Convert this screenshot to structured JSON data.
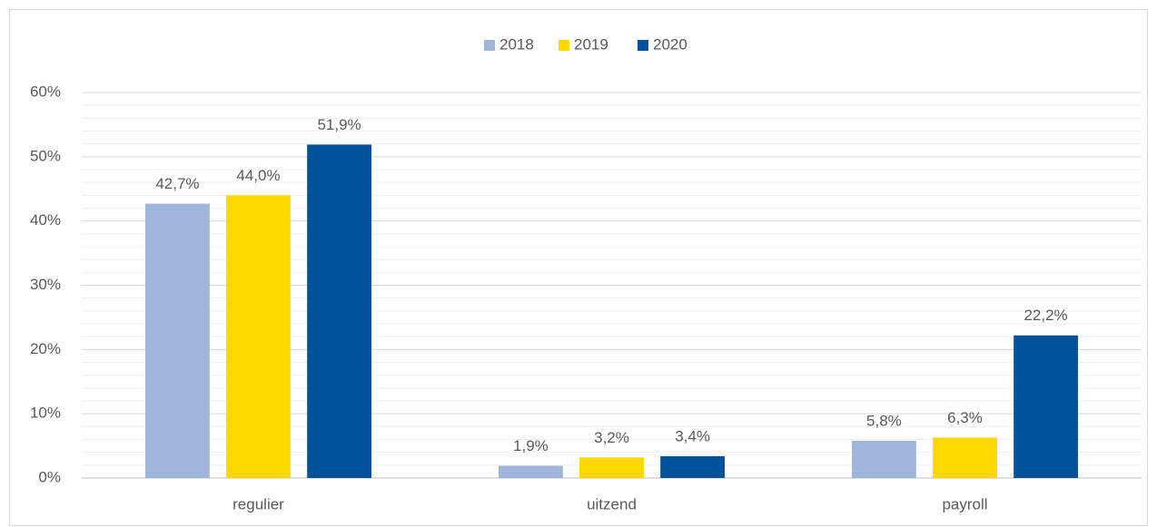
{
  "chart_data": {
    "type": "bar",
    "categories": [
      "regulier",
      "uitzend",
      "payroll"
    ],
    "series": [
      {
        "name": "2018",
        "color": "#a1b4d9",
        "values": [
          42.7,
          1.9,
          5.8
        ],
        "value_labels": [
          "42,7%",
          "1,9%",
          "5,8%"
        ]
      },
      {
        "name": "2019",
        "color": "#ffd800",
        "values": [
          44.0,
          3.2,
          6.3
        ],
        "value_labels": [
          "44,0%",
          "3,2%",
          "6,3%"
        ]
      },
      {
        "name": "2020",
        "color": "#00529b",
        "values": [
          51.9,
          3.4,
          22.2
        ],
        "value_labels": [
          "51,9%",
          "3,4%",
          "22,2%"
        ]
      }
    ],
    "ylim": [
      0,
      60
    ],
    "yticks": [
      {
        "value": 0,
        "label": "0%"
      },
      {
        "value": 10,
        "label": "10%"
      },
      {
        "value": 20,
        "label": "20%"
      },
      {
        "value": 30,
        "label": "30%"
      },
      {
        "value": 40,
        "label": "40%"
      },
      {
        "value": 50,
        "label": "50%"
      },
      {
        "value": 60,
        "label": "60%"
      }
    ],
    "grid": true,
    "legend": "top"
  }
}
